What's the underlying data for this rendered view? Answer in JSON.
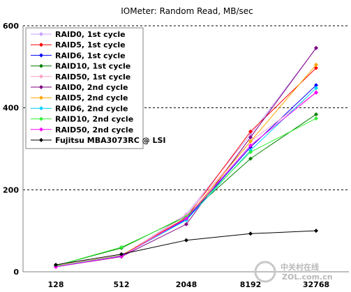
{
  "chart_data": {
    "type": "line",
    "title": "IOMeter: Random Read, MB/sec",
    "xlabel": "",
    "ylabel": "",
    "categories": [
      "128",
      "512",
      "2048",
      "8192",
      "32768"
    ],
    "ylim": [
      0,
      600
    ],
    "yticks": [
      "0",
      "200",
      "400",
      "600"
    ],
    "grid": "horizontal-dashed",
    "legend_position": "top-left",
    "series": [
      {
        "name": "RAID0, 1st cycle",
        "color": "#c8a0ff",
        "values": [
          13,
          38,
          140,
          335,
          545
        ]
      },
      {
        "name": "RAID5, 1st cycle",
        "color": "#ff0000",
        "values": [
          14,
          40,
          132,
          342,
          497
        ]
      },
      {
        "name": "RAID6, 1st cycle",
        "color": "#0000ff",
        "values": [
          13,
          39,
          128,
          304,
          455
        ]
      },
      {
        "name": "RAID10, 1st cycle",
        "color": "#008000",
        "values": [
          15,
          58,
          136,
          276,
          384
        ]
      },
      {
        "name": "RAID50, 1st cycle",
        "color": "#ffa0c8",
        "values": [
          13,
          37,
          138,
          318,
          438
        ]
      },
      {
        "name": "RAID0, 2nd cycle",
        "color": "#800080",
        "values": [
          12,
          37,
          116,
          328,
          546
        ]
      },
      {
        "name": "RAID5, 2nd cycle",
        "color": "#ffa500",
        "values": [
          14,
          40,
          130,
          318,
          505
        ]
      },
      {
        "name": "RAID6, 2nd cycle",
        "color": "#00d0ff",
        "values": [
          13,
          39,
          126,
          296,
          448
        ]
      },
      {
        "name": "RAID10, 2nd cycle",
        "color": "#33ee33",
        "values": [
          15,
          60,
          134,
          292,
          374
        ]
      },
      {
        "name": "RAID50, 2nd cycle",
        "color": "#ff00ff",
        "values": [
          12,
          38,
          130,
          308,
          437
        ]
      },
      {
        "name": "Fujitsu MBA3073RC @ LSI",
        "color": "#000000",
        "values": [
          17,
          43,
          77,
          93,
          100
        ]
      }
    ]
  },
  "watermark": {
    "line1": "中关村在线",
    "line2": "ZOL.com.cn"
  }
}
